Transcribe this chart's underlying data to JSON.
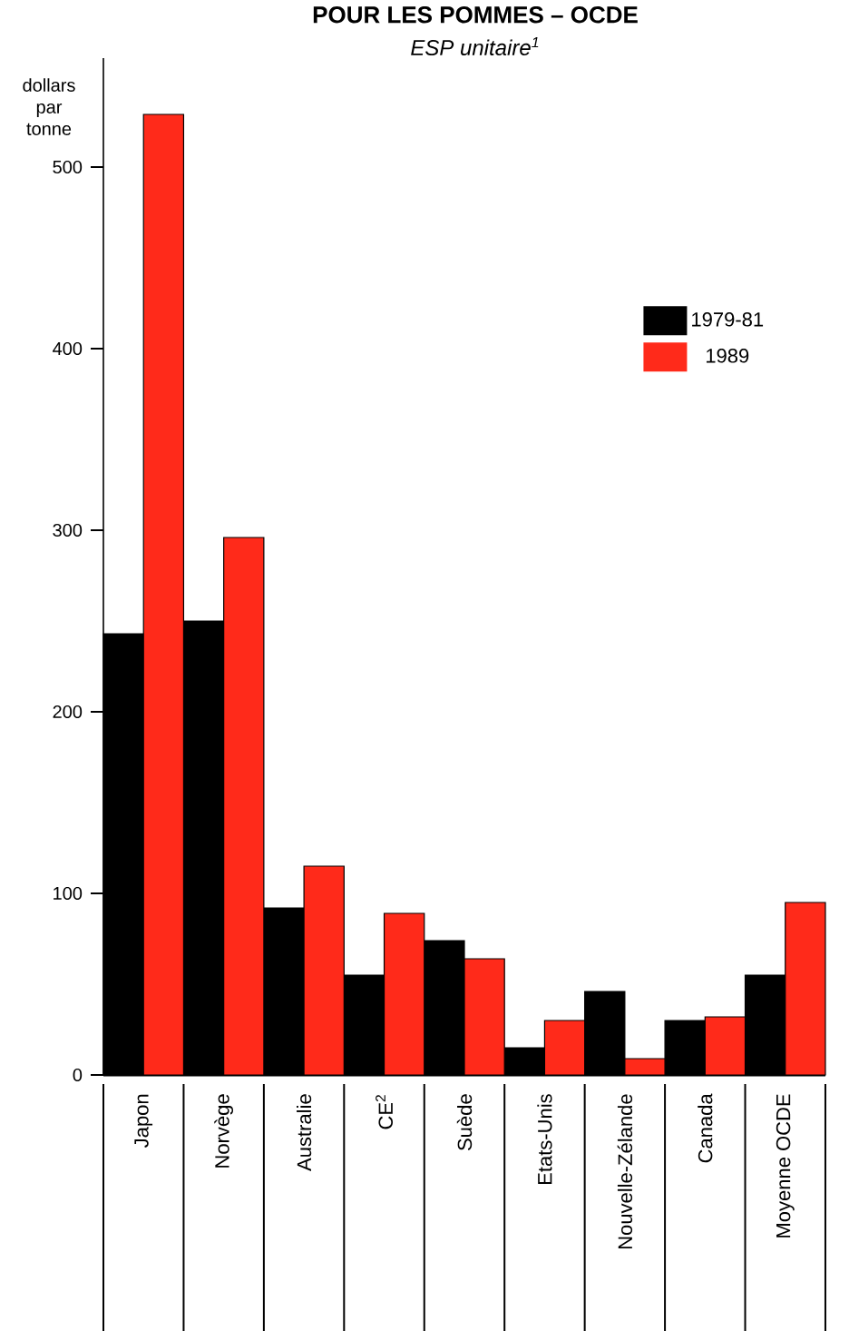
{
  "chart_data": {
    "type": "bar",
    "title": "POUR LES POMMES – OCDE",
    "subtitle": "ESP unitaire$^{1}$",
    "ylabel": "dollars par tonne",
    "categories": [
      "Japon",
      "Norvège",
      "Australie",
      "CE$^{2}$",
      "Suède",
      "Etats-Unis",
      "Nouvelle-Zélande",
      "Canada",
      "Moyenne OCDE"
    ],
    "series": [
      {
        "name": "1979-81",
        "color": "#000000",
        "values": [
          243,
          250,
          92,
          55,
          74,
          15,
          46,
          30,
          55
        ]
      },
      {
        "name": "1989",
        "color": "#ff2a1a",
        "values": [
          529,
          296,
          115,
          89,
          64,
          30,
          9,
          32,
          95
        ]
      }
    ],
    "ylim": [
      0,
      560
    ],
    "yticks": [
      0,
      100,
      200,
      300,
      400,
      500
    ],
    "legend": "top right"
  }
}
